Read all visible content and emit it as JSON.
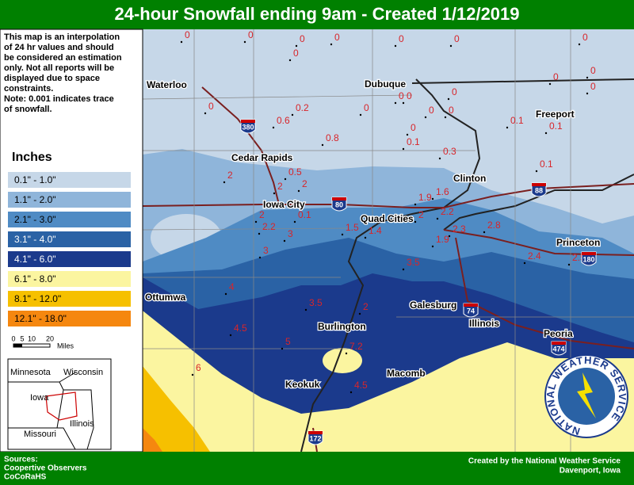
{
  "header": {
    "title": "24-hour Snowfall ending 9am - Created 1/12/2019"
  },
  "note": [
    "This map is an interpolation",
    "of 24 hr values and should",
    "be considered an estimation",
    "only. Not all reports will be",
    "displayed due to space",
    "constraints.",
    "Note: 0.001 indicates trace",
    "of snowfall."
  ],
  "legend": {
    "title": "Inches",
    "entries": [
      {
        "label": "0.1\" - 1.0\"",
        "color": "#c6d7e8"
      },
      {
        "label": "1.1\" - 2.0\"",
        "color": "#8fb5da"
      },
      {
        "label": "2.1\" - 3.0\"",
        "color": "#4f8bc4"
      },
      {
        "label": "3.1\" - 4.0\"",
        "color": "#2a62a5"
      },
      {
        "label": "4.1\" - 6.0\"",
        "color": "#1b3a8c"
      },
      {
        "label": "6.1\" - 8.0\"",
        "color": "#fbf5a0"
      },
      {
        "label": "8.1\" - 12.0\"",
        "color": "#f6c000"
      },
      {
        "label": "12.1\" - 18.0\"",
        "color": "#f5870f"
      }
    ]
  },
  "scale": {
    "ticks": [
      0,
      5,
      10,
      20
    ],
    "unit": "Miles"
  },
  "inset": {
    "labels": [
      "Minnesota",
      "Wisconsin",
      "Iowa",
      "Illinois",
      "Missouri"
    ]
  },
  "cities": [
    "Waterloo",
    "Dubuque",
    "Freeport",
    "Cedar Rapids",
    "Clinton",
    "Iowa City",
    "Quad Cities",
    "Princeton",
    "Ottumwa",
    "Galesburg",
    "Burlington",
    "Peoria",
    "Keokuk",
    "Macomb",
    "Illinois"
  ],
  "interstates": [
    "380",
    "80",
    "88",
    "180",
    "74",
    "474",
    "172"
  ],
  "reports": [
    0,
    0,
    0,
    0,
    0,
    0,
    0,
    0,
    0,
    0,
    0,
    0,
    0,
    0,
    0,
    0,
    0.2,
    0.6,
    0,
    0,
    0.1,
    0.1,
    0.8,
    0,
    0.1,
    0.3,
    0.1,
    2,
    0.5,
    2,
    2,
    1.9,
    1.6,
    0.1,
    2,
    2.2,
    1.5,
    1.4,
    2,
    2.2,
    2.3,
    1.9,
    2.8,
    3,
    3,
    3.5,
    2.4,
    2.5,
    4,
    3.5,
    2,
    4.5,
    5,
    7.2,
    6,
    4.5
  ],
  "logo": "NATIONAL WEATHER SERVICE",
  "footer": {
    "sources": [
      "Sources:",
      "Coopertive Observers",
      "CoCoRaHS"
    ],
    "credit": [
      "Created by the National Weather Service",
      "Davenport, Iowa"
    ]
  }
}
